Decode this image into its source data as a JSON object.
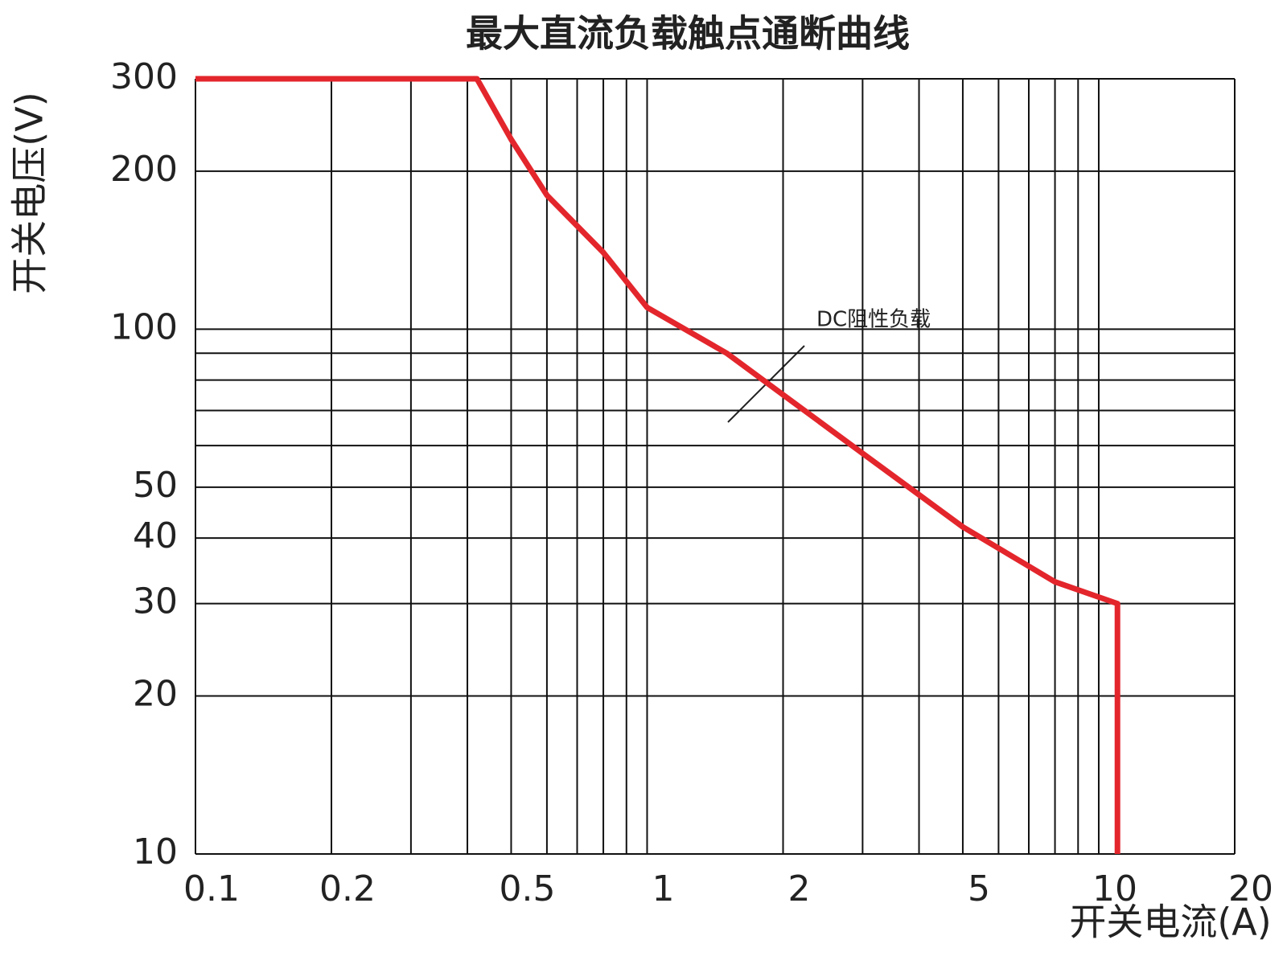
{
  "chart_data": {
    "type": "line",
    "title": "最大直流负载触点通断曲线",
    "x_label": "开关电流(A)",
    "y_label": "开关电压(V)",
    "x": [
      0.1,
      0.42,
      0.5,
      0.6,
      0.8,
      1,
      1.5,
      2,
      3,
      5,
      8,
      11,
      11
    ],
    "values": [
      300,
      300,
      230,
      180,
      140,
      110,
      90,
      75,
      58,
      42,
      33,
      30,
      10
    ],
    "color": "#e3262c",
    "annotation": "DC阻性负载",
    "x_log": true,
    "y_log": true,
    "xlim": [
      0.1,
      20
    ],
    "ylim": [
      10,
      300
    ],
    "xticks": [
      0.1,
      0.2,
      0.5,
      1,
      2,
      5,
      10,
      20
    ],
    "yticks": [
      10,
      20,
      30,
      40,
      50,
      100,
      200,
      300
    ],
    "xgrid": [
      0.1,
      0.2,
      0.3,
      0.4,
      0.5,
      0.6,
      0.7,
      0.8,
      0.9,
      1,
      2,
      3,
      4,
      5,
      6,
      7,
      8,
      9,
      10,
      20
    ],
    "ygrid": [
      10,
      20,
      30,
      40,
      50,
      60,
      70,
      80,
      90,
      100,
      200,
      300
    ],
    "grid": true
  }
}
